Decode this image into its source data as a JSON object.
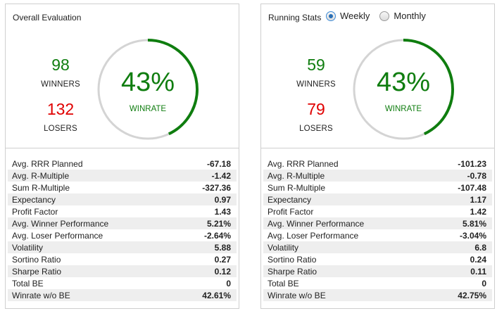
{
  "panels": [
    {
      "title": "Overall Evaluation",
      "winners": "98",
      "winners_label": "WINNERS",
      "losers": "132",
      "losers_label": "LOSERS",
      "winrate": "43%",
      "winrate_fraction": 0.43,
      "winrate_label": "WINRATE",
      "stats": [
        {
          "label": "Avg. RRR Planned",
          "value": "-67.18"
        },
        {
          "label": "Avg. R-Multiple",
          "value": "-1.42"
        },
        {
          "label": "Sum R-Multiple",
          "value": "-327.36"
        },
        {
          "label": "Expectancy",
          "value": "0.97"
        },
        {
          "label": "Profit Factor",
          "value": "1.43"
        },
        {
          "label": "Avg. Winner Performance",
          "value": "5.21%"
        },
        {
          "label": "Avg. Loser Performance",
          "value": "-2.64%"
        },
        {
          "label": "Volatility",
          "value": "5.88"
        },
        {
          "label": "Sortino Ratio",
          "value": "0.27"
        },
        {
          "label": "Sharpe Ratio",
          "value": "0.12"
        },
        {
          "label": "Total BE",
          "value": "0"
        },
        {
          "label": "Winrate w/o BE",
          "value": "42.61%"
        }
      ]
    },
    {
      "title": "Running Stats",
      "radio_options": [
        {
          "label": "Weekly",
          "checked": true
        },
        {
          "label": "Monthly",
          "checked": false
        }
      ],
      "winners": "59",
      "winners_label": "WINNERS",
      "losers": "79",
      "losers_label": "LOSERS",
      "winrate": "43%",
      "winrate_fraction": 0.43,
      "winrate_label": "WINRATE",
      "stats": [
        {
          "label": "Avg. RRR Planned",
          "value": "-101.23"
        },
        {
          "label": "Avg. R-Multiple",
          "value": "-0.78"
        },
        {
          "label": "Sum R-Multiple",
          "value": "-107.48"
        },
        {
          "label": "Expectancy",
          "value": "1.17"
        },
        {
          "label": "Profit Factor",
          "value": "1.42"
        },
        {
          "label": "Avg. Winner Performance",
          "value": "5.81%"
        },
        {
          "label": "Avg. Loser Performance",
          "value": "-3.04%"
        },
        {
          "label": "Volatility",
          "value": "6.8"
        },
        {
          "label": "Sortino Ratio",
          "value": "0.24"
        },
        {
          "label": "Sharpe Ratio",
          "value": "0.11"
        },
        {
          "label": "Total BE",
          "value": "0"
        },
        {
          "label": "Winrate w/o BE",
          "value": "42.75%"
        }
      ]
    }
  ],
  "colors": {
    "win": "#0f7d0f",
    "lose": "#e00000",
    "gauge_track": "#d4d4d4",
    "gauge_fill": "#0f7d0f"
  }
}
